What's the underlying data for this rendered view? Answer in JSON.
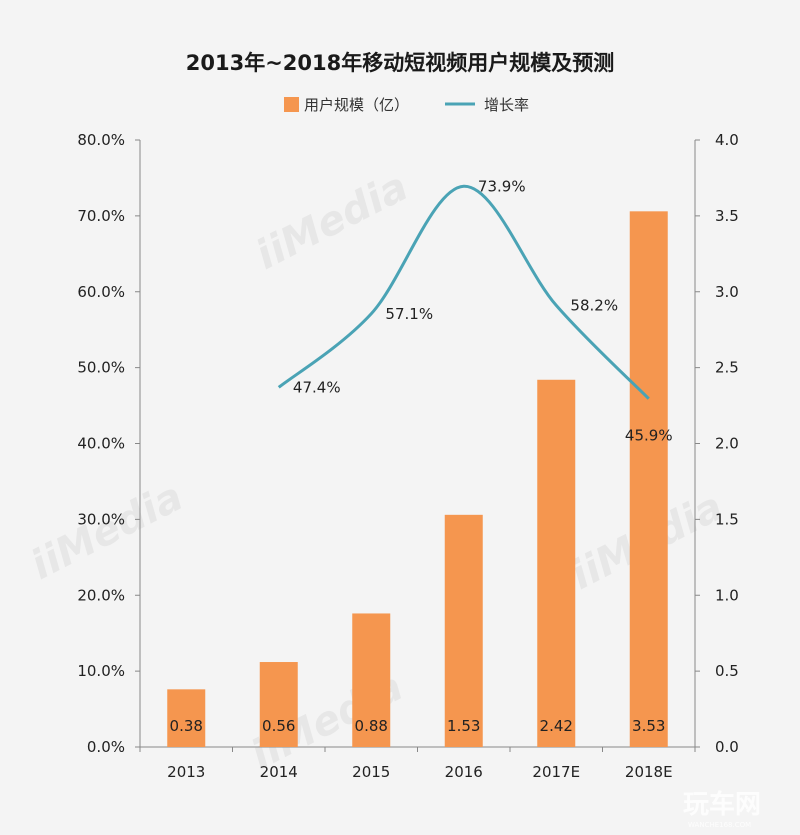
{
  "chart_data": {
    "type": "bar+line",
    "title": "2013年~2018年移动短视频用户规模及预测",
    "categories": [
      "2013",
      "2014",
      "2015",
      "2016",
      "2017E",
      "2018E"
    ],
    "series": [
      {
        "name": "用户规模（亿）",
        "type": "bar",
        "axis": "right",
        "color": "#f5964f",
        "values": [
          0.38,
          0.56,
          0.88,
          1.53,
          2.42,
          3.53
        ],
        "labels": [
          "0.38",
          "0.56",
          "0.88",
          "1.53",
          "2.42",
          "3.53"
        ]
      },
      {
        "name": "增长率",
        "type": "line",
        "axis": "left",
        "color": "#4aa3b5",
        "values": [
          null,
          47.4,
          57.1,
          73.9,
          58.2,
          45.9
        ],
        "labels": [
          null,
          "47.4%",
          "57.1%",
          "73.9%",
          "58.2%",
          "45.9%"
        ]
      }
    ],
    "left_axis": {
      "ylim": [
        0,
        80
      ],
      "ticks": [
        "0.0%",
        "10.0%",
        "20.0%",
        "30.0%",
        "40.0%",
        "50.0%",
        "60.0%",
        "70.0%",
        "80.0%"
      ]
    },
    "right_axis": {
      "ylim": [
        0,
        4
      ],
      "ticks": [
        "0.0",
        "0.5",
        "1.0",
        "1.5",
        "2.0",
        "2.5",
        "3.0",
        "3.5",
        "4.0"
      ]
    },
    "legend": "top-center",
    "grid": false
  },
  "watermarks": {
    "brand": "iiMedia",
    "site": "玩车网",
    "site_url": "WANCHE168.COM"
  }
}
